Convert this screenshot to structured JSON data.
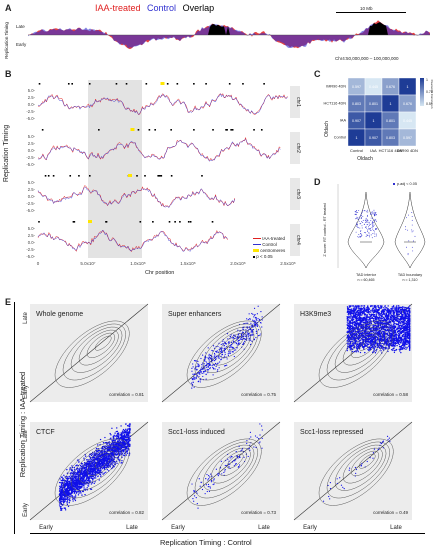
{
  "panel_labels": {
    "a": "A",
    "b": "B",
    "c": "C",
    "d": "D",
    "e": "E"
  },
  "panel_a": {
    "legend_treated": "IAA-treated",
    "legend_control": "Control",
    "legend_overlap": "Overlap",
    "ylabel": "Replication Timing",
    "y_late": "Late",
    "y_early": "Early",
    "scale_label": "10 Mb",
    "region_label": "Chr4:50,000,000 – 100,000,000",
    "colors": {
      "treated": "#e02020",
      "control": "#3030d0",
      "overlap": "#000000"
    }
  },
  "panel_b": {
    "ylabel": "Replication Timing",
    "xlabel": "Chr position",
    "y_ticks": [
      "5.0-",
      "2.5-",
      "0.0-",
      "-2.5-",
      "-5.0-"
    ],
    "x_ticks": [
      "0",
      "5.0x10⁷",
      "1.0x10⁸",
      "1.5x10⁸",
      "2.0x10⁸",
      "2.5x10⁸"
    ],
    "chromosomes": [
      "chr1",
      "chr2",
      "chr3",
      "chr4"
    ],
    "legend": [
      "IAA-treated",
      "Control",
      "centromeres",
      "p < 0.05"
    ]
  },
  "panel_c": {
    "rows": [
      "IMR90 4DN",
      "HCT116 4DN",
      "IAA",
      "Control"
    ],
    "cols": [
      "Control",
      "IAA",
      "HCT116 4DN",
      "IMR90 4DN"
    ],
    "group_label": "Oldach",
    "values": [
      [
        0.597,
        0.445,
        0.676,
        1
      ],
      [
        0.803,
        0.801,
        1,
        0.676
      ],
      [
        0.907,
        1,
        0.801,
        0.445
      ],
      [
        1,
        0.907,
        0.803,
        0.597
      ]
    ],
    "colorbar_title": "Pearson's Correlation",
    "colorbar_ticks": [
      "1",
      "0.75",
      "0.5"
    ]
  },
  "panel_d": {
    "ylabel": "Z score: RT control - RT treated",
    "legend": "p.adj < 0.05",
    "groups": [
      {
        "label": "TAD interior",
        "n": "n = 60,465"
      },
      {
        "label": "TAD boundary",
        "n": "n = 1,310"
      }
    ]
  },
  "panel_e": {
    "ylabel": "Replication Timing : IAA-treated",
    "xlabel": "Replication Timing : Control",
    "axis_late": "Late",
    "axis_early": "Early",
    "facets": [
      {
        "title": "Whole genome",
        "corr": "correlation = 0.81"
      },
      {
        "title": "Super enhancers",
        "corr": "correlation = 0.75"
      },
      {
        "title": "H3K9me3",
        "corr": "correlation = 0.58"
      },
      {
        "title": "CTCF",
        "corr": "correlation = 0.82"
      },
      {
        "title": "Scc1-loss induced",
        "corr": "correlation = 0.73"
      },
      {
        "title": "Scc1-loss repressed",
        "corr": "correlation = 0.49"
      }
    ]
  }
}
